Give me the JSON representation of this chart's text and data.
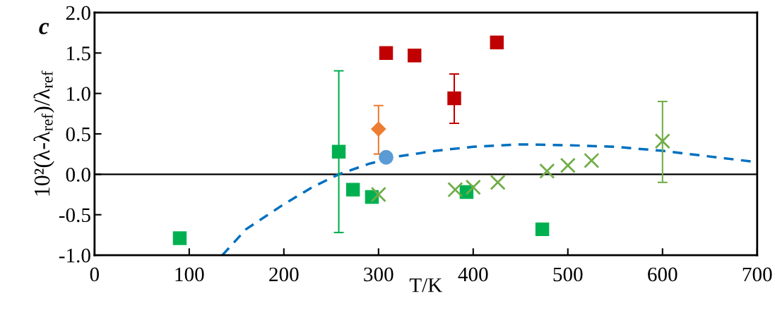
{
  "chart_data": {
    "type": "scatter",
    "xlabel": "T/K",
    "ylabel": "10²(λ-λ$_{ref}$)/λ$_{ref}$",
    "annotations": [
      "c"
    ],
    "xlim": [
      0,
      700
    ],
    "xticks": [
      0,
      100,
      200,
      300,
      400,
      500,
      600,
      700
    ],
    "ylim": [
      -1.0,
      2.0
    ],
    "yticks": [
      {
        "value": -1.0,
        "label": "-1.0"
      },
      {
        "value": -0.5,
        "label": "-0.5"
      },
      {
        "value": 0.0,
        "label": "0.0"
      },
      {
        "value": 0.5,
        "label": "0.5"
      },
      {
        "value": 1.0,
        "label": "1.0"
      },
      {
        "value": 1.5,
        "label": "1.5"
      },
      {
        "value": 2.0,
        "label": "2.0"
      }
    ],
    "grid": false,
    "legend": false,
    "ref_lines": [
      {
        "axis": "y",
        "value": 0,
        "color": "#000000",
        "line_style": "solid"
      }
    ],
    "series": [
      {
        "type": "line",
        "color": "#0070c0",
        "marker": "none",
        "line_style": "dashed",
        "x": [
          135,
          160,
          200,
          230,
          258,
          290,
          320,
          360,
          400,
          450,
          500,
          550,
          600,
          650,
          700
        ],
        "values": [
          -1.0,
          -0.68,
          -0.37,
          -0.16,
          0.0,
          0.13,
          0.22,
          0.29,
          0.34,
          0.37,
          0.36,
          0.34,
          0.29,
          0.22,
          0.15
        ]
      },
      {
        "color": "#00b050",
        "marker": "square",
        "x": [
          90,
          258,
          273,
          293,
          393,
          473
        ],
        "values": [
          -0.79,
          0.28,
          -0.19,
          -0.28,
          -0.22,
          -0.68
        ],
        "errors": [
          null,
          [
            -0.72,
            1.28
          ],
          null,
          null,
          null,
          null
        ]
      },
      {
        "color": "#c00000",
        "marker": "square",
        "x": [
          308,
          338,
          380,
          425
        ],
        "values": [
          1.5,
          1.47,
          0.94,
          1.63
        ],
        "errors": [
          null,
          null,
          [
            0.63,
            1.24
          ],
          null
        ]
      },
      {
        "color": "#ed7d31",
        "marker": "diamond",
        "x": [
          300
        ],
        "values": [
          0.56
        ],
        "errors": [
          [
            0.25,
            0.85
          ]
        ]
      },
      {
        "color": "#70ad47",
        "marker": "cross",
        "x": [
          300,
          381,
          400,
          426,
          478,
          500,
          525,
          600
        ],
        "values": [
          -0.25,
          -0.19,
          -0.16,
          -0.1,
          0.04,
          0.11,
          0.17,
          0.41
        ],
        "errors": [
          null,
          null,
          null,
          null,
          null,
          null,
          null,
          [
            -0.1,
            0.9
          ]
        ]
      },
      {
        "color": "#5b9bd5",
        "marker": "circle",
        "x": [
          308
        ],
        "values": [
          0.21
        ]
      }
    ]
  }
}
